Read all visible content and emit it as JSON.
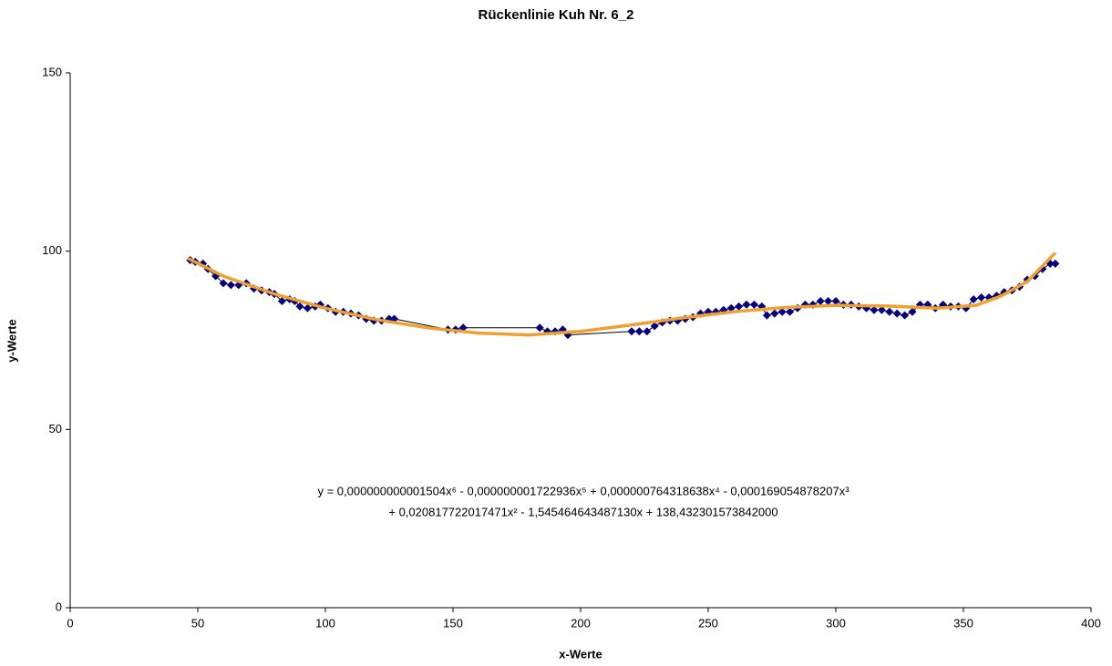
{
  "chart_data": {
    "type": "scatter",
    "title": "Rückenlinie Kuh Nr. 6_2",
    "x_label": "x-Werte",
    "y_label": "y-Werte",
    "annotation": [
      "y = 0,000000000001504x⁶ - 0,000000001722936x⁵ + 0,000000764318638x⁴ - 0,000169054878207x³",
      "+ 0,020817722017471x² - 1,545464643487130x + 138,432301573842000"
    ],
    "xlim": [
      0,
      400
    ],
    "xticks": [
      0,
      50,
      100,
      150,
      200,
      250,
      300,
      350,
      400
    ],
    "ylim": [
      0,
      150
    ],
    "yticks": [
      0,
      50,
      100,
      150
    ],
    "series": [
      {
        "color": "#000080",
        "line_color": "#000000",
        "x": [
          47,
          49,
          52,
          54,
          57,
          60,
          63,
          66,
          69,
          72,
          75,
          78,
          80,
          83,
          86,
          88,
          90,
          93,
          96,
          98,
          101,
          104,
          107,
          110,
          113,
          116,
          119,
          122,
          125,
          127,
          148,
          151,
          154,
          184,
          187,
          190,
          193,
          195,
          220,
          223,
          226,
          229,
          232,
          235,
          238,
          241,
          244,
          247,
          250,
          253,
          256,
          259,
          262,
          265,
          268,
          271,
          273,
          276,
          279,
          282,
          285,
          288,
          291,
          294,
          297,
          300,
          303,
          306,
          309,
          312,
          315,
          318,
          321,
          324,
          327,
          330,
          333,
          336,
          339,
          342,
          345,
          348,
          351,
          354,
          357,
          360,
          363,
          366,
          369,
          372,
          375,
          378,
          381,
          384,
          386
        ],
        "values": [
          97.5,
          97,
          96.5,
          95,
          93,
          91,
          90.5,
          90.5,
          91,
          89.5,
          89,
          88.5,
          88,
          86,
          86.5,
          86,
          84.5,
          84,
          84.5,
          85,
          84,
          83,
          83,
          82.5,
          82,
          81,
          80.5,
          80.5,
          81,
          81,
          78,
          78,
          78.5,
          78.5,
          77.5,
          77.5,
          78,
          76.5,
          77.5,
          77.5,
          77.5,
          79,
          80,
          80.5,
          80.5,
          81,
          81.5,
          82.5,
          83,
          83,
          83.5,
          84,
          84.5,
          85,
          85,
          84.5,
          82,
          82.5,
          83,
          83,
          84,
          85,
          85,
          86,
          86,
          86,
          85,
          85,
          84.5,
          84,
          83.5,
          83.5,
          83,
          82.5,
          82,
          83,
          85,
          85,
          84,
          85,
          84.5,
          84.5,
          84,
          86.5,
          87,
          87,
          87.5,
          88.5,
          89,
          90,
          92,
          93,
          95,
          96.5,
          96.5
        ]
      },
      {
        "color": "#f0a030",
        "x": [
          46,
          60,
          80,
          100,
          120,
          140,
          160,
          180,
          200,
          220,
          240,
          260,
          280,
          300,
          320,
          340,
          355,
          365,
          375,
          386
        ],
        "values": [
          98,
          93,
          88,
          84,
          80.8,
          78.5,
          77,
          76.5,
          77.5,
          79.3,
          81.3,
          83,
          84.2,
          84.8,
          84.6,
          84,
          84.8,
          87.5,
          91.5,
          99.5
        ]
      }
    ]
  }
}
